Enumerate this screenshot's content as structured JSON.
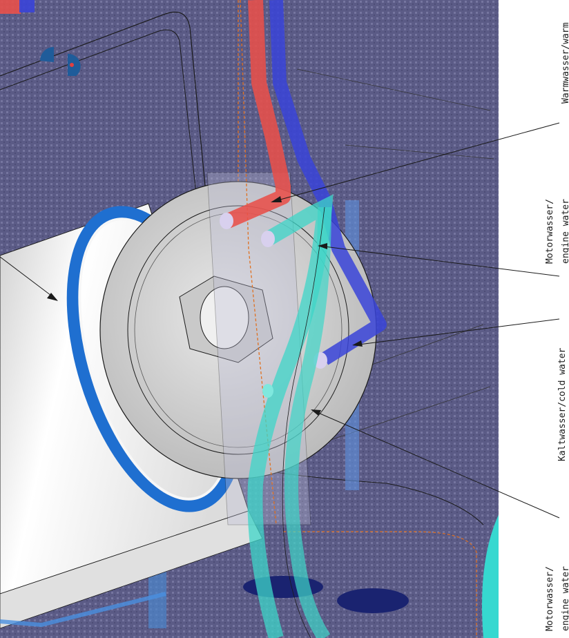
{
  "labels": {
    "warm_water": "Warmwasser/warm",
    "engine_water_top_line1": "Motorwasser/",
    "engine_water_top_line2": "engine water",
    "cold_water": "Kaltwasser/cold water",
    "engine_water_bottom_line1": "Motorwasser/",
    "engine_water_bottom_line2": "engine water"
  },
  "colors": {
    "background_panel": "#5a5a82",
    "hot_pipe": "#e8504a",
    "cold_pipe": "#3a44d8",
    "engine_pipe": "#3ed6c8",
    "boiler_body": "#f2f2f2",
    "boiler_ring": "#1f6fd0",
    "flange": "#d4d4d4"
  }
}
